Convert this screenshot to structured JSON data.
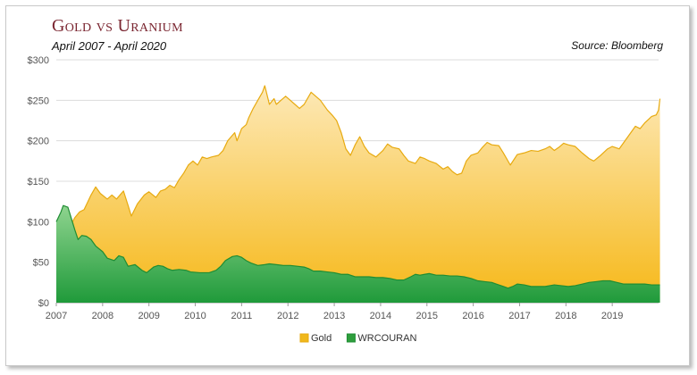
{
  "header": {
    "title": "Gold vs Uranium",
    "subtitle": "April 2007 - April 2020",
    "source": "Source: Bloomberg"
  },
  "chart_data": {
    "type": "area",
    "title": "Gold vs Uranium",
    "subtitle": "April 2007 - April 2020",
    "xlabel": "",
    "ylabel": "",
    "xlim": [
      2007.0,
      2020.0
    ],
    "ylim": [
      0,
      300
    ],
    "x_ticks": [
      "2007",
      "2008",
      "2009",
      "2010",
      "2011",
      "2012",
      "2013",
      "2014",
      "2015",
      "2016",
      "2017",
      "2018",
      "2019"
    ],
    "y_ticks": [
      "$0",
      "$50",
      "$100",
      "$150",
      "$200",
      "$250",
      "$300"
    ],
    "grid": "horizontal",
    "legend_position": "bottom",
    "series": [
      {
        "name": "Gold",
        "color": "#f0b81c",
        "points": [
          [
            2007.3,
            95
          ],
          [
            2007.4,
            105
          ],
          [
            2007.5,
            112
          ],
          [
            2007.6,
            115
          ],
          [
            2007.75,
            133
          ],
          [
            2007.85,
            143
          ],
          [
            2007.95,
            135
          ],
          [
            2008.1,
            128
          ],
          [
            2008.2,
            133
          ],
          [
            2008.3,
            128
          ],
          [
            2008.45,
            138
          ],
          [
            2008.55,
            120
          ],
          [
            2008.62,
            107
          ],
          [
            2008.75,
            122
          ],
          [
            2008.9,
            133
          ],
          [
            2009.0,
            137
          ],
          [
            2009.15,
            130
          ],
          [
            2009.25,
            138
          ],
          [
            2009.35,
            140
          ],
          [
            2009.45,
            145
          ],
          [
            2009.55,
            142
          ],
          [
            2009.65,
            152
          ],
          [
            2009.75,
            160
          ],
          [
            2009.85,
            170
          ],
          [
            2009.95,
            175
          ],
          [
            2010.05,
            170
          ],
          [
            2010.15,
            180
          ],
          [
            2010.25,
            178
          ],
          [
            2010.35,
            180
          ],
          [
            2010.5,
            182
          ],
          [
            2010.6,
            188
          ],
          [
            2010.7,
            200
          ],
          [
            2010.85,
            210
          ],
          [
            2010.9,
            200
          ],
          [
            2011.0,
            215
          ],
          [
            2011.1,
            220
          ],
          [
            2011.15,
            228
          ],
          [
            2011.25,
            240
          ],
          [
            2011.35,
            250
          ],
          [
            2011.45,
            260
          ],
          [
            2011.5,
            268
          ],
          [
            2011.6,
            245
          ],
          [
            2011.7,
            252
          ],
          [
            2011.75,
            245
          ],
          [
            2011.85,
            250
          ],
          [
            2011.95,
            255
          ],
          [
            2012.05,
            250
          ],
          [
            2012.15,
            245
          ],
          [
            2012.25,
            240
          ],
          [
            2012.35,
            245
          ],
          [
            2012.5,
            260
          ],
          [
            2012.6,
            255
          ],
          [
            2012.7,
            250
          ],
          [
            2012.85,
            238
          ],
          [
            2012.95,
            232
          ],
          [
            2013.05,
            225
          ],
          [
            2013.15,
            210
          ],
          [
            2013.25,
            190
          ],
          [
            2013.35,
            182
          ],
          [
            2013.45,
            195
          ],
          [
            2013.55,
            205
          ],
          [
            2013.65,
            193
          ],
          [
            2013.75,
            185
          ],
          [
            2013.9,
            180
          ],
          [
            2014.05,
            188
          ],
          [
            2014.15,
            196
          ],
          [
            2014.25,
            192
          ],
          [
            2014.4,
            190
          ],
          [
            2014.5,
            182
          ],
          [
            2014.6,
            175
          ],
          [
            2014.75,
            172
          ],
          [
            2014.85,
            180
          ],
          [
            2014.95,
            178
          ],
          [
            2015.05,
            175
          ],
          [
            2015.2,
            172
          ],
          [
            2015.35,
            165
          ],
          [
            2015.45,
            168
          ],
          [
            2015.55,
            162
          ],
          [
            2015.65,
            158
          ],
          [
            2015.75,
            160
          ],
          [
            2015.85,
            175
          ],
          [
            2015.95,
            182
          ],
          [
            2016.1,
            185
          ],
          [
            2016.2,
            192
          ],
          [
            2016.3,
            198
          ],
          [
            2016.4,
            195
          ],
          [
            2016.55,
            194
          ],
          [
            2016.65,
            185
          ],
          [
            2016.8,
            170
          ],
          [
            2016.95,
            183
          ],
          [
            2017.1,
            185
          ],
          [
            2017.25,
            188
          ],
          [
            2017.4,
            187
          ],
          [
            2017.55,
            190
          ],
          [
            2017.65,
            193
          ],
          [
            2017.75,
            188
          ],
          [
            2017.85,
            192
          ],
          [
            2017.95,
            197
          ],
          [
            2018.05,
            195
          ],
          [
            2018.2,
            193
          ],
          [
            2018.35,
            185
          ],
          [
            2018.5,
            178
          ],
          [
            2018.6,
            175
          ],
          [
            2018.75,
            182
          ],
          [
            2018.9,
            190
          ],
          [
            2019.0,
            193
          ],
          [
            2019.15,
            190
          ],
          [
            2019.3,
            202
          ],
          [
            2019.4,
            210
          ],
          [
            2019.5,
            218
          ],
          [
            2019.6,
            215
          ],
          [
            2019.7,
            222
          ],
          [
            2019.85,
            230
          ],
          [
            2019.95,
            232
          ],
          [
            2020.0,
            238
          ],
          [
            2020.03,
            252
          ]
        ]
      },
      {
        "name": "WRCOURAN",
        "color": "#2e9e3c",
        "points": [
          [
            2007.0,
            100
          ],
          [
            2007.1,
            112
          ],
          [
            2007.15,
            120
          ],
          [
            2007.25,
            118
          ],
          [
            2007.32,
            105
          ],
          [
            2007.4,
            90
          ],
          [
            2007.47,
            78
          ],
          [
            2007.55,
            83
          ],
          [
            2007.65,
            82
          ],
          [
            2007.75,
            78
          ],
          [
            2007.85,
            70
          ],
          [
            2008.0,
            63
          ],
          [
            2008.1,
            55
          ],
          [
            2008.25,
            52
          ],
          [
            2008.35,
            58
          ],
          [
            2008.45,
            56
          ],
          [
            2008.55,
            45
          ],
          [
            2008.7,
            47
          ],
          [
            2008.85,
            40
          ],
          [
            2008.95,
            37
          ],
          [
            2009.1,
            44
          ],
          [
            2009.2,
            46
          ],
          [
            2009.3,
            45
          ],
          [
            2009.4,
            42
          ],
          [
            2009.5,
            40
          ],
          [
            2009.65,
            41
          ],
          [
            2009.8,
            40
          ],
          [
            2009.9,
            38
          ],
          [
            2010.1,
            37
          ],
          [
            2010.3,
            37
          ],
          [
            2010.45,
            40
          ],
          [
            2010.55,
            45
          ],
          [
            2010.65,
            52
          ],
          [
            2010.8,
            57
          ],
          [
            2010.9,
            58
          ],
          [
            2011.0,
            56
          ],
          [
            2011.1,
            52
          ],
          [
            2011.2,
            49
          ],
          [
            2011.35,
            46
          ],
          [
            2011.5,
            47
          ],
          [
            2011.6,
            48
          ],
          [
            2011.75,
            47
          ],
          [
            2011.9,
            46
          ],
          [
            2012.05,
            46
          ],
          [
            2012.2,
            45
          ],
          [
            2012.35,
            44
          ],
          [
            2012.45,
            42
          ],
          [
            2012.55,
            39
          ],
          [
            2012.7,
            39
          ],
          [
            2012.85,
            38
          ],
          [
            2013.0,
            37
          ],
          [
            2013.15,
            35
          ],
          [
            2013.3,
            35
          ],
          [
            2013.45,
            32
          ],
          [
            2013.6,
            32
          ],
          [
            2013.75,
            32
          ],
          [
            2013.9,
            31
          ],
          [
            2014.05,
            31
          ],
          [
            2014.2,
            30
          ],
          [
            2014.35,
            28
          ],
          [
            2014.5,
            28
          ],
          [
            2014.65,
            32
          ],
          [
            2014.75,
            35
          ],
          [
            2014.85,
            34
          ],
          [
            2014.95,
            35
          ],
          [
            2015.05,
            36
          ],
          [
            2015.2,
            34
          ],
          [
            2015.35,
            34
          ],
          [
            2015.5,
            33
          ],
          [
            2015.65,
            33
          ],
          [
            2015.8,
            32
          ],
          [
            2015.95,
            30
          ],
          [
            2016.1,
            27
          ],
          [
            2016.25,
            26
          ],
          [
            2016.4,
            25
          ],
          [
            2016.5,
            23
          ],
          [
            2016.65,
            20
          ],
          [
            2016.75,
            18
          ],
          [
            2016.85,
            20
          ],
          [
            2016.95,
            23
          ],
          [
            2017.1,
            22
          ],
          [
            2017.25,
            20
          ],
          [
            2017.4,
            20
          ],
          [
            2017.55,
            20
          ],
          [
            2017.65,
            21
          ],
          [
            2017.75,
            22
          ],
          [
            2017.9,
            21
          ],
          [
            2018.05,
            20
          ],
          [
            2018.2,
            21
          ],
          [
            2018.35,
            23
          ],
          [
            2018.5,
            25
          ],
          [
            2018.65,
            26
          ],
          [
            2018.8,
            27
          ],
          [
            2018.95,
            27
          ],
          [
            2019.1,
            25
          ],
          [
            2019.25,
            23
          ],
          [
            2019.4,
            23
          ],
          [
            2019.55,
            23
          ],
          [
            2019.7,
            23
          ],
          [
            2019.85,
            22
          ],
          [
            2020.0,
            22
          ],
          [
            2020.03,
            22
          ]
        ]
      }
    ]
  }
}
